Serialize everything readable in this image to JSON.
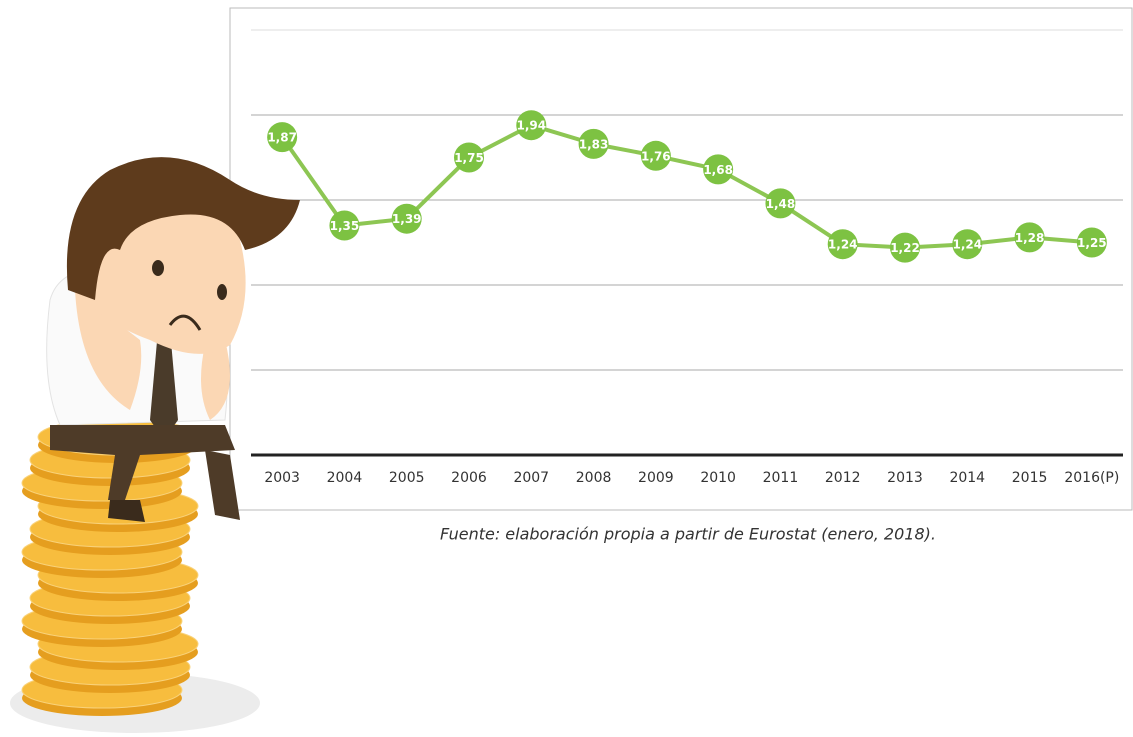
{
  "chart_data": {
    "type": "line",
    "categories": [
      "2003",
      "2004",
      "2005",
      "2006",
      "2007",
      "2008",
      "2009",
      "2010",
      "2011",
      "2012",
      "2013",
      "2014",
      "2015",
      "2016(P)"
    ],
    "values": [
      1.87,
      1.35,
      1.39,
      1.75,
      1.94,
      1.83,
      1.76,
      1.68,
      1.48,
      1.24,
      1.22,
      1.24,
      1.28,
      1.25
    ],
    "value_labels": [
      "1,87",
      "1,35",
      "1,39",
      "1,75",
      "1,94",
      "1,83",
      "1,76",
      "1,68",
      "1,48",
      "1,24",
      "1,22",
      "1,24",
      "1,28",
      "1,25"
    ],
    "color": "#7dc242",
    "ylim": [
      0,
      2.5
    ],
    "yticks": [
      0,
      0.5,
      1,
      1.5,
      2,
      2.5
    ],
    "grid": true,
    "source": "Fuente: elaboración propia a partir de Eurostat (enero, 2018)."
  }
}
